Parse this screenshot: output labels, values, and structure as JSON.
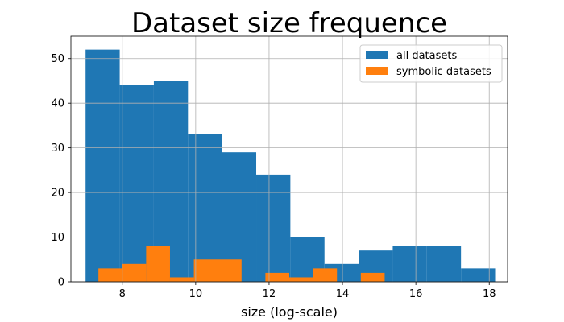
{
  "chart_data": {
    "type": "bar",
    "title": "Dataset size frequence",
    "xlabel": "size (log-scale)",
    "ylabel": "",
    "xlim": [
      6.6,
      18.5
    ],
    "ylim": [
      0,
      55
    ],
    "xticks": [
      8,
      10,
      12,
      14,
      16,
      18
    ],
    "yticks": [
      0,
      10,
      20,
      30,
      40,
      50
    ],
    "grid": true,
    "legend_position": "top-right",
    "series": [
      {
        "name": "all datasets",
        "color": "#1f77b4",
        "bins": [
          {
            "x0": 7.0,
            "x1": 7.93,
            "count": 52
          },
          {
            "x0": 7.93,
            "x1": 8.86,
            "count": 44
          },
          {
            "x0": 8.86,
            "x1": 9.79,
            "count": 45
          },
          {
            "x0": 9.79,
            "x1": 10.72,
            "count": 33
          },
          {
            "x0": 10.72,
            "x1": 11.65,
            "count": 29
          },
          {
            "x0": 11.65,
            "x1": 12.58,
            "count": 24
          },
          {
            "x0": 12.58,
            "x1": 13.51,
            "count": 10
          },
          {
            "x0": 13.51,
            "x1": 14.44,
            "count": 4
          },
          {
            "x0": 14.44,
            "x1": 15.37,
            "count": 7
          },
          {
            "x0": 15.37,
            "x1": 16.3,
            "count": 8
          },
          {
            "x0": 16.3,
            "x1": 17.23,
            "count": 8
          },
          {
            "x0": 17.23,
            "x1": 18.16,
            "count": 3
          }
        ]
      },
      {
        "name": "symbolic datasets",
        "color": "#ff7f0e",
        "bins": [
          {
            "x0": 7.35,
            "x1": 8.0,
            "count": 3
          },
          {
            "x0": 8.0,
            "x1": 8.65,
            "count": 4
          },
          {
            "x0": 8.65,
            "x1": 9.3,
            "count": 8
          },
          {
            "x0": 9.3,
            "x1": 9.95,
            "count": 1
          },
          {
            "x0": 9.95,
            "x1": 10.6,
            "count": 5
          },
          {
            "x0": 10.6,
            "x1": 11.25,
            "count": 5
          },
          {
            "x0": 11.25,
            "x1": 11.9,
            "count": 0
          },
          {
            "x0": 11.9,
            "x1": 12.55,
            "count": 2
          },
          {
            "x0": 12.55,
            "x1": 13.2,
            "count": 1
          },
          {
            "x0": 13.2,
            "x1": 13.85,
            "count": 3
          },
          {
            "x0": 13.85,
            "x1": 14.5,
            "count": 0
          },
          {
            "x0": 14.5,
            "x1": 15.15,
            "count": 2
          }
        ]
      }
    ]
  }
}
